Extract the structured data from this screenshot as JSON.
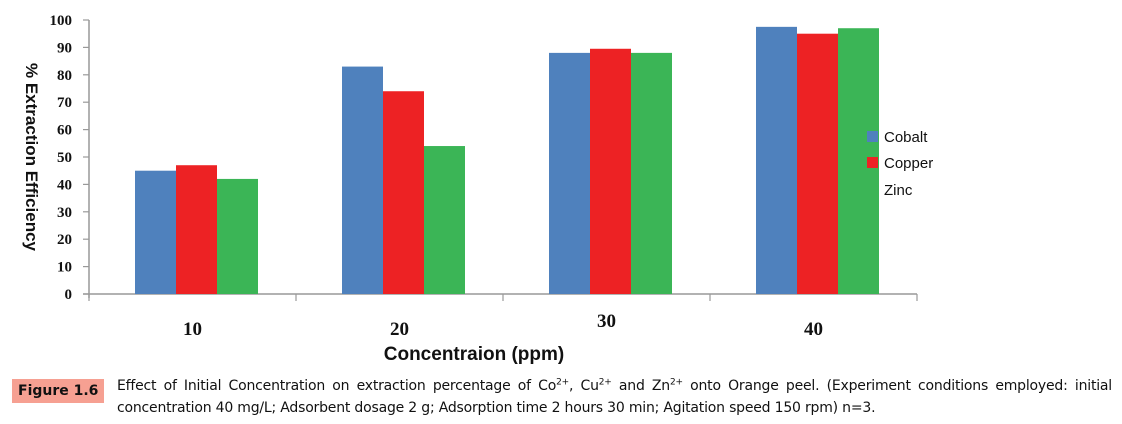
{
  "chart_data": {
    "type": "bar",
    "title": "",
    "xlabel": "Concentraion (ppm)",
    "ylabel": "% Extraction Efficiency",
    "categories": [
      "10",
      "20",
      "30",
      "40"
    ],
    "ylim": [
      0,
      100
    ],
    "yticks": [
      0,
      10,
      20,
      30,
      40,
      50,
      60,
      70,
      80,
      90,
      100
    ],
    "grid": false,
    "legend_position": "right",
    "series": [
      {
        "name": "Cobalt",
        "color": "#4f81bd",
        "values": [
          45,
          83,
          88,
          97.5
        ]
      },
      {
        "name": "Copper",
        "color": "#ed2224",
        "values": [
          47,
          74,
          89.5,
          95
        ]
      },
      {
        "name": "Zinc",
        "color": "#3bb556",
        "values": [
          42,
          54,
          88,
          97
        ]
      }
    ]
  },
  "caption": {
    "label": "Figure 1.6",
    "label_color": "#f6a092",
    "text_part1": "Effect of Initial Concentration on extraction percentage of Co",
    "sup1": "2+",
    "text_part2": ", Cu",
    "sup2": "2+",
    "text_part3": " and Zn",
    "sup3": "2+",
    "text_part4": " onto Orange peel. (Experiment conditions employed: initial concentration 40 mg/L; Adsorbent dosage 2 g; Adsorption time 2 hours 30 min; Agitation speed 150 rpm) n=3."
  }
}
